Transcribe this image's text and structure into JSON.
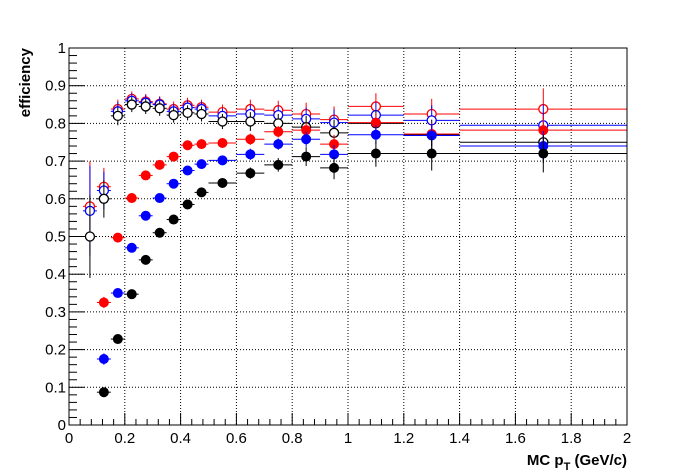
{
  "chart_data": {
    "type": "scatter",
    "xlabel": "MC p",
    "xlabel_sub": "T",
    "xlabel_unit": " (GeV/c)",
    "ylabel": "efficiency",
    "xlim": [
      0,
      2
    ],
    "ylim": [
      0,
      1
    ],
    "x_ticks": [
      "0",
      "0.2",
      "0.4",
      "0.6",
      "0.8",
      "1",
      "1.2",
      "1.4",
      "1.6",
      "1.8",
      "2"
    ],
    "y_ticks": [
      "0",
      "0.1",
      "0.2",
      "0.3",
      "0.4",
      "0.5",
      "0.6",
      "0.7",
      "0.8",
      "0.9",
      "1"
    ],
    "grid": true,
    "series": [
      {
        "color": "#ff0000",
        "marker": "open",
        "points": [
          {
            "x": 0.075,
            "y": 0.58,
            "ex": 0.025,
            "ey": 0.12
          },
          {
            "x": 0.125,
            "y": 0.632,
            "ex": 0.025,
            "ey": 0.05
          },
          {
            "x": 0.175,
            "y": 0.838,
            "ex": 0.025,
            "ey": 0.025
          },
          {
            "x": 0.225,
            "y": 0.865,
            "ex": 0.025,
            "ey": 0.02
          },
          {
            "x": 0.275,
            "y": 0.858,
            "ex": 0.025,
            "ey": 0.02
          },
          {
            "x": 0.325,
            "y": 0.852,
            "ex": 0.025,
            "ey": 0.02
          },
          {
            "x": 0.375,
            "y": 0.838,
            "ex": 0.025,
            "ey": 0.02
          },
          {
            "x": 0.425,
            "y": 0.848,
            "ex": 0.025,
            "ey": 0.02
          },
          {
            "x": 0.475,
            "y": 0.843,
            "ex": 0.025,
            "ey": 0.02
          },
          {
            "x": 0.55,
            "y": 0.83,
            "ex": 0.05,
            "ey": 0.02
          },
          {
            "x": 0.65,
            "y": 0.838,
            "ex": 0.05,
            "ey": 0.025
          },
          {
            "x": 0.75,
            "y": 0.835,
            "ex": 0.05,
            "ey": 0.025
          },
          {
            "x": 0.85,
            "y": 0.825,
            "ex": 0.05,
            "ey": 0.03
          },
          {
            "x": 0.95,
            "y": 0.81,
            "ex": 0.05,
            "ey": 0.035
          },
          {
            "x": 1.1,
            "y": 0.845,
            "ex": 0.1,
            "ey": 0.035
          },
          {
            "x": 1.3,
            "y": 0.825,
            "ex": 0.1,
            "ey": 0.04
          },
          {
            "x": 1.7,
            "y": 0.838,
            "ex": 0.3,
            "ey": 0.055
          }
        ]
      },
      {
        "color": "#0000ff",
        "marker": "open",
        "points": [
          {
            "x": 0.075,
            "y": 0.568,
            "ex": 0.025,
            "ey": 0.12
          },
          {
            "x": 0.125,
            "y": 0.622,
            "ex": 0.025,
            "ey": 0.05
          },
          {
            "x": 0.175,
            "y": 0.832,
            "ex": 0.025,
            "ey": 0.025
          },
          {
            "x": 0.225,
            "y": 0.86,
            "ex": 0.025,
            "ey": 0.02
          },
          {
            "x": 0.275,
            "y": 0.855,
            "ex": 0.025,
            "ey": 0.02
          },
          {
            "x": 0.325,
            "y": 0.85,
            "ex": 0.025,
            "ey": 0.02
          },
          {
            "x": 0.375,
            "y": 0.832,
            "ex": 0.025,
            "ey": 0.02
          },
          {
            "x": 0.425,
            "y": 0.842,
            "ex": 0.025,
            "ey": 0.02
          },
          {
            "x": 0.475,
            "y": 0.838,
            "ex": 0.025,
            "ey": 0.02
          },
          {
            "x": 0.55,
            "y": 0.82,
            "ex": 0.05,
            "ey": 0.02
          },
          {
            "x": 0.65,
            "y": 0.825,
            "ex": 0.05,
            "ey": 0.025
          },
          {
            "x": 0.75,
            "y": 0.822,
            "ex": 0.05,
            "ey": 0.025
          },
          {
            "x": 0.85,
            "y": 0.812,
            "ex": 0.05,
            "ey": 0.03
          },
          {
            "x": 0.95,
            "y": 0.802,
            "ex": 0.05,
            "ey": 0.035
          },
          {
            "x": 1.1,
            "y": 0.822,
            "ex": 0.1,
            "ey": 0.035
          },
          {
            "x": 1.3,
            "y": 0.808,
            "ex": 0.1,
            "ey": 0.04
          },
          {
            "x": 1.7,
            "y": 0.795,
            "ex": 0.3,
            "ey": 0.055
          }
        ]
      },
      {
        "color": "#000000",
        "marker": "open",
        "points": [
          {
            "x": 0.075,
            "y": 0.5,
            "ex": 0.025,
            "ey": 0.11
          },
          {
            "x": 0.125,
            "y": 0.6,
            "ex": 0.025,
            "ey": 0.05
          },
          {
            "x": 0.175,
            "y": 0.82,
            "ex": 0.025,
            "ey": 0.025
          },
          {
            "x": 0.225,
            "y": 0.85,
            "ex": 0.025,
            "ey": 0.02
          },
          {
            "x": 0.275,
            "y": 0.845,
            "ex": 0.025,
            "ey": 0.02
          },
          {
            "x": 0.325,
            "y": 0.84,
            "ex": 0.025,
            "ey": 0.02
          },
          {
            "x": 0.375,
            "y": 0.822,
            "ex": 0.025,
            "ey": 0.02
          },
          {
            "x": 0.425,
            "y": 0.828,
            "ex": 0.025,
            "ey": 0.02
          },
          {
            "x": 0.475,
            "y": 0.825,
            "ex": 0.025,
            "ey": 0.02
          },
          {
            "x": 0.55,
            "y": 0.805,
            "ex": 0.05,
            "ey": 0.02
          },
          {
            "x": 0.65,
            "y": 0.805,
            "ex": 0.05,
            "ey": 0.025
          },
          {
            "x": 0.75,
            "y": 0.8,
            "ex": 0.05,
            "ey": 0.025
          },
          {
            "x": 0.85,
            "y": 0.79,
            "ex": 0.05,
            "ey": 0.03
          },
          {
            "x": 0.95,
            "y": 0.775,
            "ex": 0.05,
            "ey": 0.035
          },
          {
            "x": 1.1,
            "y": 0.8,
            "ex": 0.1,
            "ey": 0.035
          },
          {
            "x": 1.3,
            "y": 0.77,
            "ex": 0.1,
            "ey": 0.04
          },
          {
            "x": 1.7,
            "y": 0.75,
            "ex": 0.3,
            "ey": 0.055
          }
        ]
      },
      {
        "color": "#ff0000",
        "marker": "filled",
        "points": [
          {
            "x": 0.125,
            "y": 0.325,
            "ex": 0.025,
            "ey": 0.015
          },
          {
            "x": 0.175,
            "y": 0.497,
            "ex": 0.025,
            "ey": 0.012
          },
          {
            "x": 0.225,
            "y": 0.602,
            "ex": 0.025,
            "ey": 0.012
          },
          {
            "x": 0.275,
            "y": 0.662,
            "ex": 0.025,
            "ey": 0.012
          },
          {
            "x": 0.325,
            "y": 0.69,
            "ex": 0.025,
            "ey": 0.012
          },
          {
            "x": 0.375,
            "y": 0.712,
            "ex": 0.025,
            "ey": 0.012
          },
          {
            "x": 0.425,
            "y": 0.742,
            "ex": 0.025,
            "ey": 0.012
          },
          {
            "x": 0.475,
            "y": 0.745,
            "ex": 0.025,
            "ey": 0.012
          },
          {
            "x": 0.55,
            "y": 0.748,
            "ex": 0.05,
            "ey": 0.012
          },
          {
            "x": 0.65,
            "y": 0.758,
            "ex": 0.05,
            "ey": 0.015
          },
          {
            "x": 0.75,
            "y": 0.778,
            "ex": 0.05,
            "ey": 0.015
          },
          {
            "x": 0.85,
            "y": 0.782,
            "ex": 0.05,
            "ey": 0.02
          },
          {
            "x": 0.95,
            "y": 0.745,
            "ex": 0.05,
            "ey": 0.025
          },
          {
            "x": 1.1,
            "y": 0.802,
            "ex": 0.1,
            "ey": 0.025
          },
          {
            "x": 1.3,
            "y": 0.772,
            "ex": 0.1,
            "ey": 0.03
          },
          {
            "x": 1.7,
            "y": 0.782,
            "ex": 0.3,
            "ey": 0.04
          }
        ]
      },
      {
        "color": "#0000ff",
        "marker": "filled",
        "points": [
          {
            "x": 0.125,
            "y": 0.175,
            "ex": 0.025,
            "ey": 0.015
          },
          {
            "x": 0.175,
            "y": 0.35,
            "ex": 0.025,
            "ey": 0.012
          },
          {
            "x": 0.225,
            "y": 0.47,
            "ex": 0.025,
            "ey": 0.012
          },
          {
            "x": 0.275,
            "y": 0.555,
            "ex": 0.025,
            "ey": 0.012
          },
          {
            "x": 0.325,
            "y": 0.602,
            "ex": 0.025,
            "ey": 0.012
          },
          {
            "x": 0.375,
            "y": 0.64,
            "ex": 0.025,
            "ey": 0.012
          },
          {
            "x": 0.425,
            "y": 0.675,
            "ex": 0.025,
            "ey": 0.012
          },
          {
            "x": 0.475,
            "y": 0.692,
            "ex": 0.025,
            "ey": 0.012
          },
          {
            "x": 0.55,
            "y": 0.702,
            "ex": 0.05,
            "ey": 0.012
          },
          {
            "x": 0.65,
            "y": 0.718,
            "ex": 0.05,
            "ey": 0.015
          },
          {
            "x": 0.75,
            "y": 0.745,
            "ex": 0.05,
            "ey": 0.015
          },
          {
            "x": 0.85,
            "y": 0.758,
            "ex": 0.05,
            "ey": 0.02
          },
          {
            "x": 0.95,
            "y": 0.718,
            "ex": 0.05,
            "ey": 0.025
          },
          {
            "x": 1.1,
            "y": 0.77,
            "ex": 0.1,
            "ey": 0.025
          },
          {
            "x": 1.3,
            "y": 0.768,
            "ex": 0.1,
            "ey": 0.03
          },
          {
            "x": 1.7,
            "y": 0.74,
            "ex": 0.3,
            "ey": 0.04
          }
        ]
      },
      {
        "color": "#000000",
        "marker": "filled",
        "points": [
          {
            "x": 0.125,
            "y": 0.087,
            "ex": 0.025,
            "ey": 0.012
          },
          {
            "x": 0.175,
            "y": 0.228,
            "ex": 0.025,
            "ey": 0.012
          },
          {
            "x": 0.225,
            "y": 0.347,
            "ex": 0.025,
            "ey": 0.012
          },
          {
            "x": 0.275,
            "y": 0.438,
            "ex": 0.025,
            "ey": 0.012
          },
          {
            "x": 0.325,
            "y": 0.51,
            "ex": 0.025,
            "ey": 0.012
          },
          {
            "x": 0.375,
            "y": 0.545,
            "ex": 0.025,
            "ey": 0.012
          },
          {
            "x": 0.425,
            "y": 0.585,
            "ex": 0.025,
            "ey": 0.012
          },
          {
            "x": 0.475,
            "y": 0.617,
            "ex": 0.025,
            "ey": 0.012
          },
          {
            "x": 0.55,
            "y": 0.642,
            "ex": 0.05,
            "ey": 0.012
          },
          {
            "x": 0.65,
            "y": 0.668,
            "ex": 0.05,
            "ey": 0.015
          },
          {
            "x": 0.75,
            "y": 0.69,
            "ex": 0.05,
            "ey": 0.018
          },
          {
            "x": 0.85,
            "y": 0.712,
            "ex": 0.05,
            "ey": 0.025
          },
          {
            "x": 0.95,
            "y": 0.682,
            "ex": 0.05,
            "ey": 0.03
          },
          {
            "x": 1.1,
            "y": 0.72,
            "ex": 0.1,
            "ey": 0.035
          },
          {
            "x": 1.3,
            "y": 0.72,
            "ex": 0.1,
            "ey": 0.045
          },
          {
            "x": 1.7,
            "y": 0.72,
            "ex": 0.3,
            "ey": 0.05
          }
        ]
      }
    ]
  }
}
